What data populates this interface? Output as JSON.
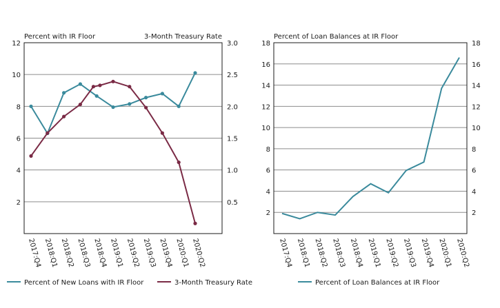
{
  "colors": {
    "teal": "#3a8a9c",
    "maroon": "#7a2a45",
    "grid": "#8c8c8c",
    "text": "#1a1a1a"
  },
  "chart_data": [
    {
      "type": "line",
      "title_left": "Percent with IR Floor",
      "title_right": "3-Month Treasury Rate",
      "categories": [
        "2017:Q4",
        "2018:Q1",
        "2018:Q2",
        "2018:Q3",
        "2018:Q4",
        "2019:Q1",
        "2019:Q2",
        "2019:Q3",
        "2019:Q4",
        "2020:Q1",
        "2020:Q2"
      ],
      "x": [
        "2017:Q4",
        "2018:Q1",
        "2018:Q2",
        "2018:Q3",
        "2018:Q3.5",
        "2018:Q4",
        "2019:Q1",
        "2019:Q2",
        "2019:Q3",
        "2019:Q4",
        "2020:Q1"
      ],
      "ylim_left": [
        0,
        12
      ],
      "yticks_left": [
        "2",
        "4",
        "6",
        "8",
        "10",
        "12"
      ],
      "ylim_right": [
        0,
        3.0
      ],
      "yticks_right": [
        "0.5",
        "1.0",
        "1.5",
        "2.0",
        "2.5",
        "3.0"
      ],
      "series": [
        {
          "name": "Percent of New Loans with IR Floor",
          "axis": "left",
          "color": "#3a8a9c",
          "x": [
            "2017:Q4",
            "2018:Q1",
            "2018:Q2",
            "2018:Q3",
            "2018:Q4",
            "2019:Q1",
            "2019:Q2",
            "2019:Q3",
            "2019:Q4",
            "2020:Q1",
            "2020:Q2"
          ],
          "values": [
            8.0,
            6.3,
            8.85,
            9.4,
            8.65,
            7.95,
            8.15,
            8.55,
            8.8,
            8.0,
            10.1
          ]
        },
        {
          "name": "3-Month Treasury Rate",
          "axis": "right",
          "color": "#7a2a45",
          "points": [
            {
              "x": 0,
              "y": 1.22
            },
            {
              "x": 1,
              "y": 1.58
            },
            {
              "x": 2,
              "y": 1.84
            },
            {
              "x": 3,
              "y": 2.03
            },
            {
              "x": 3.8,
              "y": 2.31
            },
            {
              "x": 4.2,
              "y": 2.33
            },
            {
              "x": 5,
              "y": 2.39
            },
            {
              "x": 6,
              "y": 2.31
            },
            {
              "x": 7,
              "y": 1.98
            },
            {
              "x": 8,
              "y": 1.58
            },
            {
              "x": 9,
              "y": 1.12
            },
            {
              "x": 10,
              "y": 0.16
            }
          ]
        }
      ]
    },
    {
      "type": "line",
      "title": "Percent of Loan Balances at IR Floor",
      "categories": [
        "2017:Q4",
        "2018:Q1",
        "2018:Q2",
        "2018:Q3",
        "2018:Q4",
        "2019:Q1",
        "2019:Q2",
        "2019:Q3",
        "2019:Q4",
        "2020:Q1",
        "2020:Q2"
      ],
      "ylim": [
        0,
        18
      ],
      "yticks": [
        "2",
        "4",
        "6",
        "8",
        "10",
        "12",
        "14",
        "16",
        "18"
      ],
      "series": [
        {
          "name": "Percent of Loan Balances at IR Floor",
          "color": "#3a8a9c",
          "values": [
            1.9,
            1.4,
            2.0,
            1.75,
            3.5,
            4.7,
            3.85,
            5.95,
            6.75,
            13.7,
            16.6
          ]
        }
      ]
    }
  ]
}
